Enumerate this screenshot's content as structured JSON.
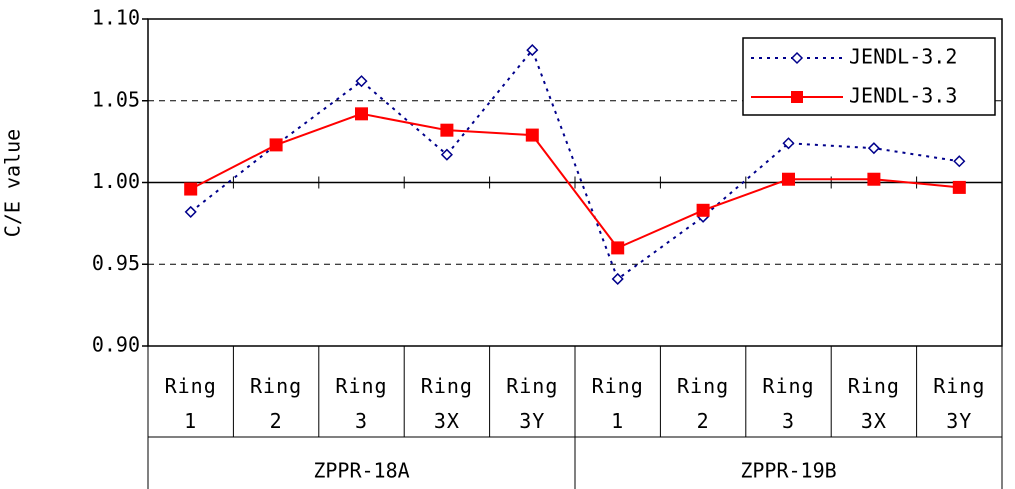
{
  "chart_data": {
    "type": "line",
    "y_label": "C/E value",
    "groups": [
      {
        "name": "ZPPR-18A",
        "categories": [
          "Ring 1",
          "Ring 2",
          "Ring 3",
          "Ring 3X",
          "Ring 3Y"
        ]
      },
      {
        "name": "ZPPR-19B",
        "categories": [
          "Ring 1",
          "Ring 2",
          "Ring 3",
          "Ring 3X",
          "Ring 3Y"
        ]
      }
    ],
    "series": [
      {
        "name": "JENDL-3.2",
        "color": "#00008b",
        "style": "dotted",
        "marker": "diamond",
        "values": [
          0.982,
          1.023,
          1.062,
          1.017,
          1.081,
          0.941,
          0.979,
          1.024,
          1.021,
          1.013
        ]
      },
      {
        "name": "JENDL-3.3",
        "color": "#ff0000",
        "style": "solid",
        "marker": "square",
        "values": [
          0.996,
          1.023,
          1.042,
          1.032,
          1.029,
          0.96,
          0.983,
          1.002,
          1.002,
          0.997
        ]
      }
    ],
    "ylim": [
      0.9,
      1.1
    ],
    "yticks": [
      {
        "value": 0.9,
        "label": "0.90"
      },
      0.95,
      {
        "value": 1.0,
        "label": "1.00"
      },
      1.05,
      {
        "value": 1.1,
        "label": "1.10"
      }
    ],
    "x_axis_crosses": 1.0,
    "grid": true,
    "legend": "top-right"
  }
}
